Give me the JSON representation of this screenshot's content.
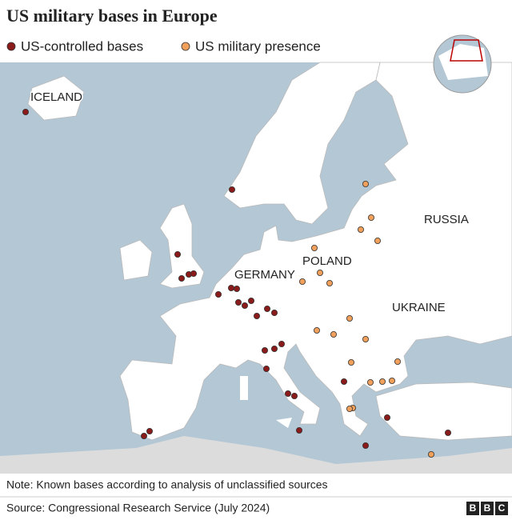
{
  "title": "US military bases in Europe",
  "legend": [
    {
      "name": "US-controlled bases",
      "color": "#8b1a1a"
    },
    {
      "name": "US military presence",
      "color": "#f0a05a"
    }
  ],
  "map_labels": [
    "ICELAND",
    "GERMANY",
    "POLAND",
    "RUSSIA",
    "UKRAINE"
  ],
  "note": "Note: Known bases according to analysis of unclassified sources",
  "source": "Source: Congressional Research Service (July 2024)",
  "logo": [
    "B",
    "B",
    "C"
  ]
}
